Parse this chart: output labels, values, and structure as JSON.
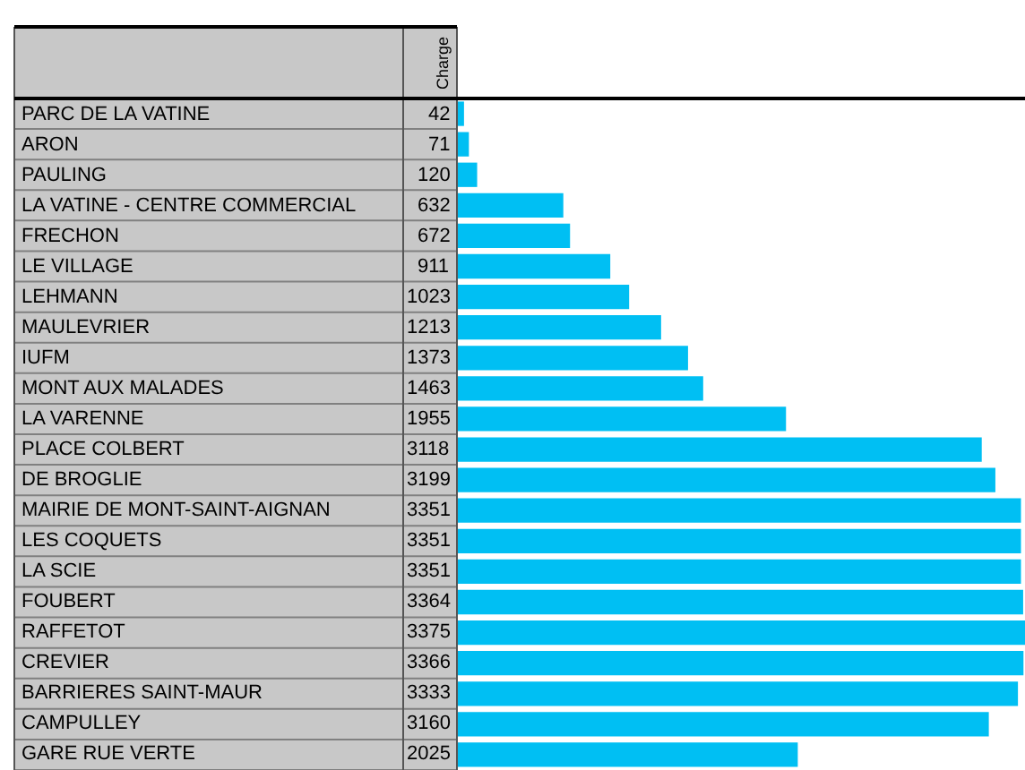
{
  "chart_data": {
    "type": "bar",
    "orientation": "horizontal",
    "data_labels": true,
    "color": "#00bff3",
    "annotations": [
      "Charge"
    ],
    "categories": [
      "PARC DE LA VATINE",
      "ARON",
      "PAULING",
      "LA VATINE - CENTRE COMMERCIAL",
      "FRECHON",
      "LE VILLAGE",
      "LEHMANN",
      "MAULEVRIER",
      "IUFM",
      "MONT AUX MALADES",
      "LA VARENNE",
      "PLACE COLBERT",
      "DE BROGLIE",
      "MAIRIE DE MONT-SAINT-AIGNAN",
      "LES COQUETS",
      "LA SCIE",
      "FOUBERT",
      "RAFFETOT",
      "CREVIER",
      "BARRIERES SAINT-MAUR",
      "CAMPULLEY",
      "GARE RUE VERTE"
    ],
    "values": [
      42,
      71,
      120,
      632,
      672,
      911,
      1023,
      1213,
      1373,
      1463,
      1955,
      3118,
      3199,
      3351,
      3351,
      3351,
      3364,
      3375,
      3366,
      3333,
      3160,
      2025
    ]
  }
}
